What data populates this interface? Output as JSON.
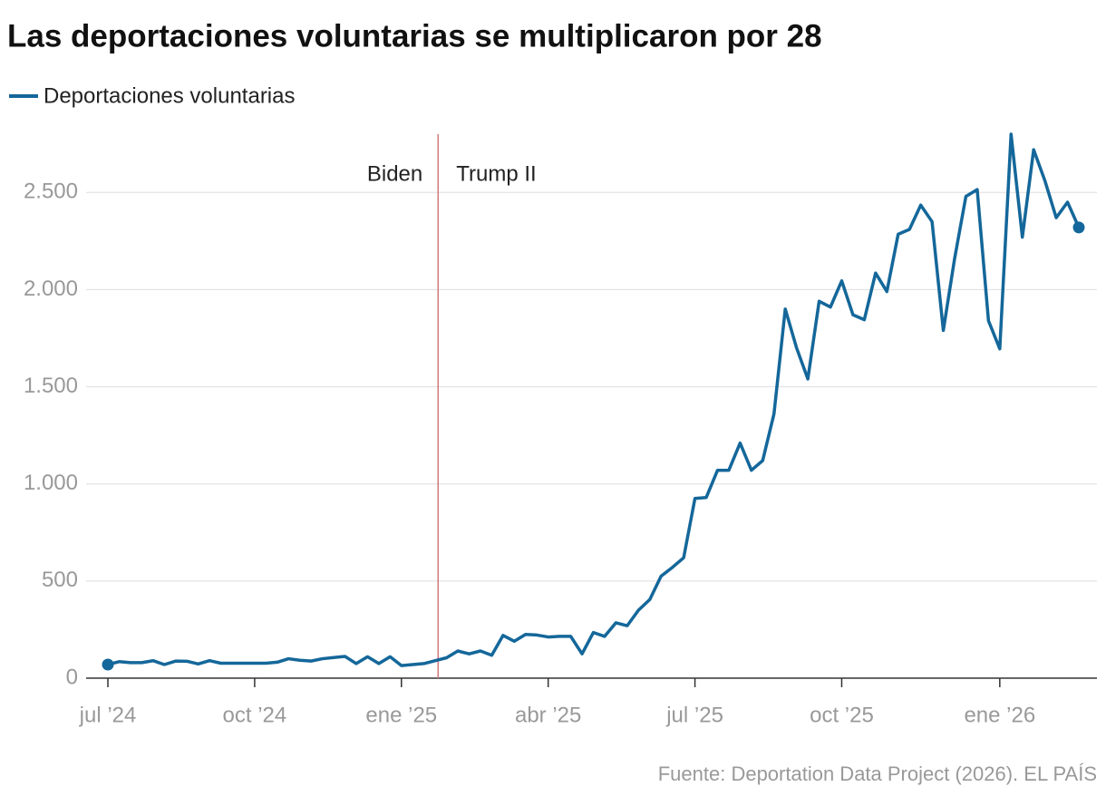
{
  "chart_data": {
    "type": "line",
    "title": "Las deportaciones voluntarias se multiplicaron por 28",
    "source": "Fuente: Deportation Data Project (2026). EL PAÍS",
    "categories": [
      "jul ’24",
      null,
      null,
      null,
      null,
      null,
      null,
      null,
      null,
      null,
      null,
      null,
      null,
      "oct ’24",
      null,
      null,
      null,
      null,
      null,
      null,
      null,
      null,
      null,
      null,
      null,
      null,
      "ene ’25",
      null,
      null,
      null,
      null,
      null,
      null,
      null,
      null,
      null,
      null,
      null,
      null,
      "abr ’25",
      null,
      null,
      null,
      null,
      null,
      null,
      null,
      null,
      null,
      null,
      null,
      null,
      "jul ’25",
      null,
      null,
      null,
      null,
      null,
      null,
      null,
      null,
      null,
      null,
      null,
      null,
      "oct ’25",
      null,
      null,
      null,
      null,
      null,
      null,
      null,
      null,
      null,
      null,
      null,
      null,
      null,
      "ene ’26",
      null,
      null,
      null,
      null,
      null,
      null,
      null
    ],
    "series": [
      {
        "name": "Deportaciones voluntarias",
        "color": "#14679a",
        "values": [
          70,
          85,
          80,
          80,
          90,
          70,
          88,
          87,
          73,
          90,
          77,
          77,
          77,
          77,
          77,
          82,
          100,
          92,
          88,
          100,
          106,
          112,
          75,
          110,
          75,
          110,
          65,
          70,
          75,
          90,
          105,
          140,
          125,
          140,
          118,
          220,
          190,
          225,
          222,
          212,
          215,
          215,
          125,
          235,
          215,
          285,
          270,
          350,
          405,
          525,
          570,
          620,
          925,
          930,
          1070,
          1070,
          1210,
          1070,
          1120,
          1360,
          1900,
          1700,
          1540,
          1940,
          1910,
          2045,
          1870,
          1845,
          2085,
          1990,
          2285,
          2310,
          2435,
          2350,
          1790,
          2160,
          2480,
          2515,
          1840,
          1695,
          2800,
          2270,
          2720,
          2560,
          2370,
          2450,
          2320
        ]
      }
    ],
    "ylim": [
      0,
      2800
    ],
    "yticks": [
      0,
      500,
      {
        "value": 1000,
        "label": "1.000"
      },
      {
        "value": 1500,
        "label": "1.500"
      },
      {
        "value": 2000,
        "label": "2.000"
      },
      {
        "value": 2500,
        "label": "2.500"
      }
    ],
    "grid": true,
    "divider_at": 29.25,
    "annotations": [
      "Biden",
      "Trump II"
    ]
  }
}
